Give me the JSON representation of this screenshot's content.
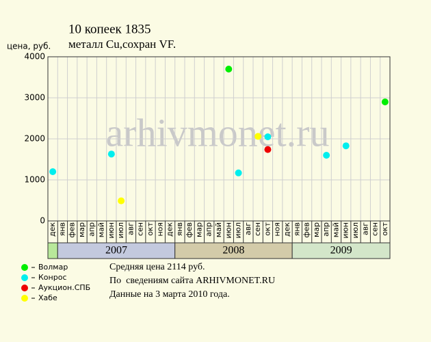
{
  "chart_data": {
    "type": "scatter",
    "title": "10 копеек 1835",
    "subtitle": "металл Cu,сохран VF.",
    "y_label": "цена, руб.",
    "watermark": "arhivmonet.ru",
    "categories": [
      "дек",
      "янв",
      "фев",
      "мар",
      "апр",
      "май",
      "июн",
      "июл",
      "авг",
      "сен",
      "окт",
      "ноя",
      "дек",
      "янв",
      "фев",
      "мар",
      "апр",
      "май",
      "июн",
      "июл",
      "авг",
      "сен",
      "окт",
      "ноя",
      "дек",
      "янв",
      "фев",
      "мар",
      "апр",
      "май",
      "июн",
      "июл",
      "авг",
      "сен",
      "окт"
    ],
    "years": [
      "2007",
      "2008",
      "2009"
    ],
    "year_colors": [
      "#c3c9de",
      "#d3cba9",
      "#d3e6c9"
    ],
    "lead_color": "#b8e89a",
    "ylim": [
      0,
      4000
    ],
    "yticks": [
      0,
      1000,
      2000,
      3000,
      4000
    ],
    "grid": true,
    "series": [
      {
        "name": "Волмар",
        "color": "#00ee00",
        "values": [
          null,
          null,
          null,
          null,
          null,
          null,
          null,
          null,
          null,
          null,
          null,
          null,
          null,
          null,
          null,
          null,
          null,
          null,
          3700,
          null,
          null,
          null,
          null,
          null,
          null,
          null,
          null,
          null,
          null,
          null,
          null,
          null,
          null,
          null,
          2900
        ]
      },
      {
        "name": "Конрос",
        "color": "#00eeee",
        "values": [
          1200,
          null,
          null,
          null,
          null,
          null,
          1630,
          null,
          null,
          null,
          null,
          null,
          null,
          null,
          null,
          null,
          null,
          null,
          null,
          1170,
          null,
          null,
          2050,
          null,
          null,
          null,
          null,
          null,
          1600,
          null,
          1830,
          null,
          null,
          null,
          null
        ]
      },
      {
        "name": "Аукцион.СПБ",
        "color": "#ee0000",
        "values": [
          null,
          null,
          null,
          null,
          null,
          null,
          null,
          null,
          null,
          null,
          null,
          null,
          null,
          null,
          null,
          null,
          null,
          null,
          null,
          null,
          null,
          null,
          1740,
          null,
          null,
          null,
          null,
          null,
          null,
          null,
          null,
          null,
          null,
          null,
          null
        ]
      },
      {
        "name": "Хабе",
        "color": "#ffff00",
        "values": [
          null,
          null,
          null,
          null,
          null,
          null,
          null,
          490,
          null,
          null,
          null,
          null,
          null,
          null,
          null,
          null,
          null,
          null,
          null,
          null,
          null,
          2060,
          null,
          null,
          null,
          null,
          null,
          null,
          null,
          null,
          null,
          null,
          null,
          null,
          null
        ]
      }
    ],
    "notes": [
      "Средняя цена 2114 руб.",
      "По  сведениям сайта ARHIVMONET.RU",
      "Данные на 3 марта 2010 года."
    ]
  }
}
